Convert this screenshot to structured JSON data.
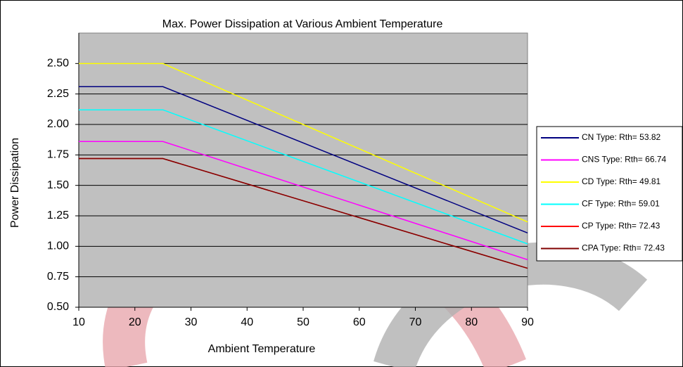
{
  "chart_data": {
    "type": "line",
    "title": "Max. Power Dissipation at Various Ambient Temperature",
    "x_label": "Ambient Temperature",
    "y_label": "Power Dissipation",
    "x": [
      10,
      25,
      90
    ],
    "series": [
      {
        "name": "CN Type: Rth= 53.82",
        "color": "#000080",
        "values": [
          2.31,
          2.31,
          1.11
        ]
      },
      {
        "name": "CNS Type: Rth= 66.74",
        "color": "#ff00ff",
        "values": [
          1.86,
          1.86,
          0.89
        ]
      },
      {
        "name": "CD Type: Rth= 49.81",
        "color": "#ffff00",
        "values": [
          2.5,
          2.5,
          1.2
        ]
      },
      {
        "name": "CF Type: Rth= 59.01",
        "color": "#00ffff",
        "values": [
          2.12,
          2.12,
          1.02
        ]
      },
      {
        "name": "CP Type: Rth= 72.43",
        "color": "#ff0000",
        "values": [
          1.72,
          1.72,
          0.82
        ]
      },
      {
        "name": "CPA Type: Rth= 72.43",
        "color": "#800000",
        "values": [
          1.72,
          1.72,
          0.82
        ]
      }
    ],
    "xlim": [
      10,
      90
    ],
    "xticks": [
      10,
      20,
      30,
      40,
      50,
      60,
      70,
      80,
      90
    ],
    "ylim": [
      0.5,
      2.75
    ],
    "yticks": [
      {
        "value": 0.5,
        "label": "0.50"
      },
      {
        "value": 0.75,
        "label": "0.75"
      },
      {
        "value": 1,
        "label": "1.00"
      },
      {
        "value": 1.25,
        "label": "1.25"
      },
      {
        "value": 1.5,
        "label": "1.50"
      },
      {
        "value": 1.75,
        "label": "1.75"
      },
      {
        "value": 2,
        "label": "2.00"
      },
      {
        "value": 2.25,
        "label": "2.25"
      },
      {
        "value": 2.5,
        "label": "2.50"
      }
    ],
    "grid": true,
    "plot_background": "#c0c0c0",
    "legend_position": "right"
  }
}
